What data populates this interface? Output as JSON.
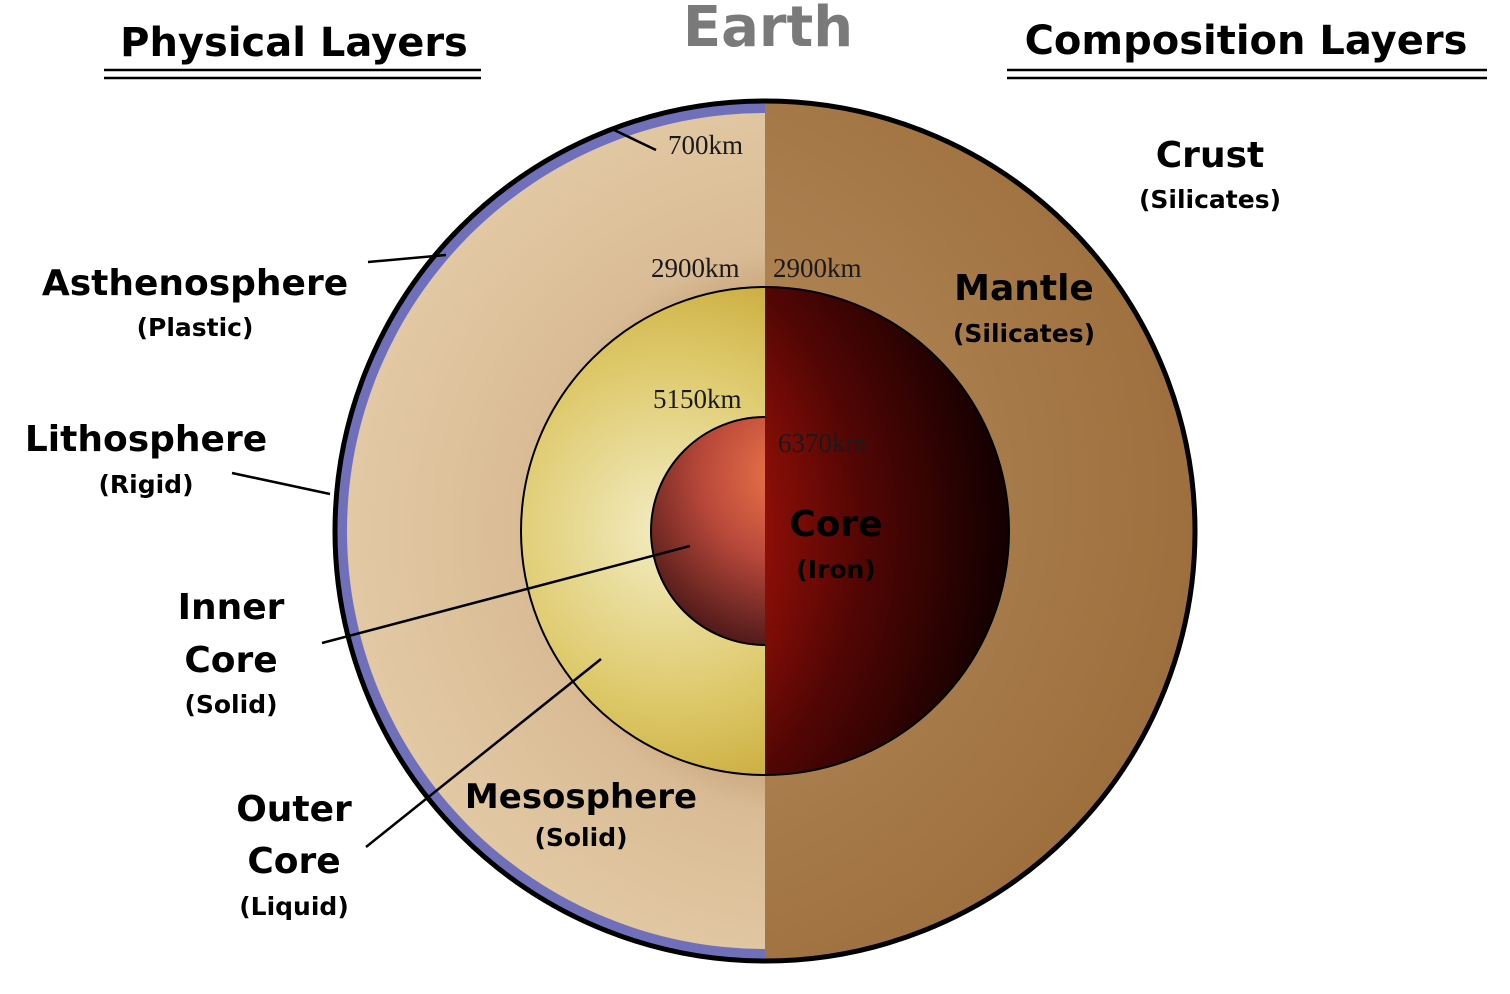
{
  "title": "Earth",
  "headers": {
    "physical": "Physical Layers",
    "composition": "Composition Layers"
  },
  "physical_labels": {
    "asthenosphere": {
      "name": "Asthenosphere",
      "state": "(Plastic)"
    },
    "lithosphere": {
      "name": "Lithosphere",
      "state": "(Rigid)"
    },
    "inner_core": {
      "name_line1": "Inner",
      "name_line2": "Core",
      "state": "(Solid)"
    },
    "outer_core": {
      "name_line1": "Outer",
      "name_line2": "Core",
      "state": "(Liquid)"
    },
    "mesosphere": {
      "name": "Mesosphere",
      "state": "(Solid)"
    }
  },
  "composition_labels": {
    "crust": {
      "name": "Crust",
      "material": "(Silicates)"
    },
    "mantle": {
      "name": "Mantle",
      "material": "(Silicates)"
    },
    "core": {
      "name": "Core",
      "material": "(Iron)"
    }
  },
  "depths": {
    "d700": "700km",
    "d2900_left": "2900km",
    "d2900_right": "2900km",
    "d5150": "5150km",
    "d6370": "6370km"
  },
  "colors": {
    "lithosphere": "#6f6fb8",
    "mantle_physical": "#d8bb95",
    "mantle_composition": "#a97d4c",
    "outer_core": "#e3d37a",
    "inner_core": "#c0503a",
    "core_composition": "#c8160c",
    "title_gray": "#7a7a7a"
  }
}
